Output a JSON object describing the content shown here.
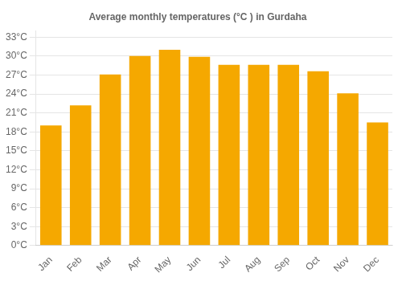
{
  "chart_data": {
    "type": "bar",
    "title": "Average monthly temperatures (°C ) in Gurdaha",
    "categories": [
      "Jan",
      "Feb",
      "Mar",
      "Apr",
      "May",
      "Jun",
      "Jul",
      "Aug",
      "Sep",
      "Oct",
      "Nov",
      "Dec"
    ],
    "values": [
      19.0,
      22.2,
      27.1,
      30.0,
      31.0,
      29.9,
      28.6,
      28.6,
      28.6,
      27.6,
      24.1,
      19.5
    ],
    "color": "#F5A800",
    "ylim": [
      0,
      34
    ],
    "yticks": [
      {
        "value": 0,
        "label": "0°C"
      },
      {
        "value": 3,
        "label": "3°C"
      },
      {
        "value": 6,
        "label": "6°C"
      },
      {
        "value": 9,
        "label": "9°C"
      },
      {
        "value": 12,
        "label": "12°C"
      },
      {
        "value": 15,
        "label": "15°C"
      },
      {
        "value": 18,
        "label": "18°C"
      },
      {
        "value": 21,
        "label": "21°C"
      },
      {
        "value": 24,
        "label": "24°C"
      },
      {
        "value": 27,
        "label": "27°C"
      },
      {
        "value": 30,
        "label": "30°C"
      },
      {
        "value": 33,
        "label": "33°C"
      }
    ],
    "grid": true
  }
}
